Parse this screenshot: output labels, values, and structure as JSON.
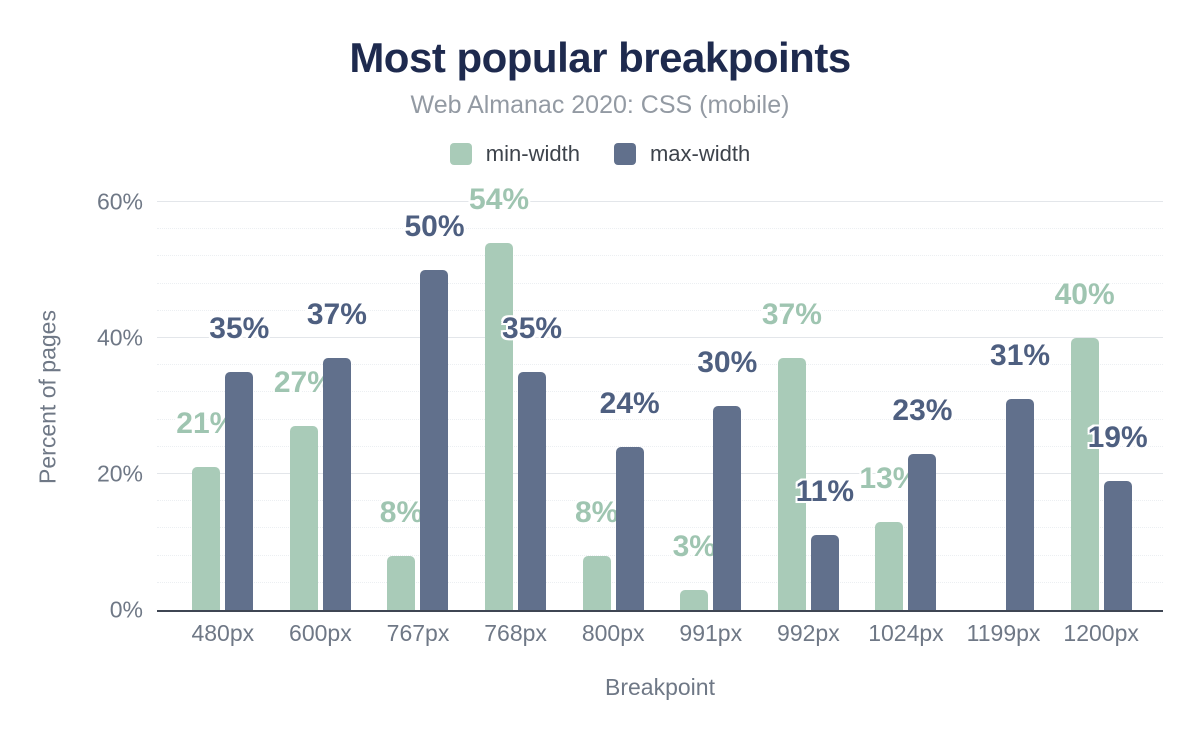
{
  "chart_data": {
    "type": "bar",
    "title": "Most popular breakpoints",
    "subtitle": "Web Almanac 2020: CSS (mobile)",
    "xlabel": "Breakpoint",
    "ylabel": "Percent of pages",
    "unit": "%",
    "categories": [
      "480px",
      "600px",
      "767px",
      "768px",
      "800px",
      "991px",
      "992px",
      "1024px",
      "1199px",
      "1200px"
    ],
    "series": [
      {
        "name": "min-width",
        "color": "#a9cbb8",
        "label_color": "#9fc5b1",
        "values": [
          21,
          27,
          8,
          54,
          8,
          3,
          37,
          13,
          null,
          40
        ]
      },
      {
        "name": "max-width",
        "color": "#61708c",
        "label_color": "#4e5f80",
        "values": [
          35,
          37,
          50,
          35,
          24,
          30,
          11,
          23,
          31,
          19
        ]
      }
    ],
    "y_ticks": [
      0,
      20,
      40,
      60
    ],
    "ylim": [
      0,
      62.5
    ],
    "grid": {
      "major_interval": 20,
      "minor_interval": 4,
      "minor_style": "dotted"
    },
    "legend_position": "top",
    "colors": {
      "title": "#1e2a4e",
      "subtitle": "#939aa3",
      "axis_text": "#6f7886",
      "legend_text": "#3d434b",
      "major_gridline": "#e3e6ea",
      "minor_gridline": "#eceff2",
      "axis_line": "#3f4653"
    }
  }
}
